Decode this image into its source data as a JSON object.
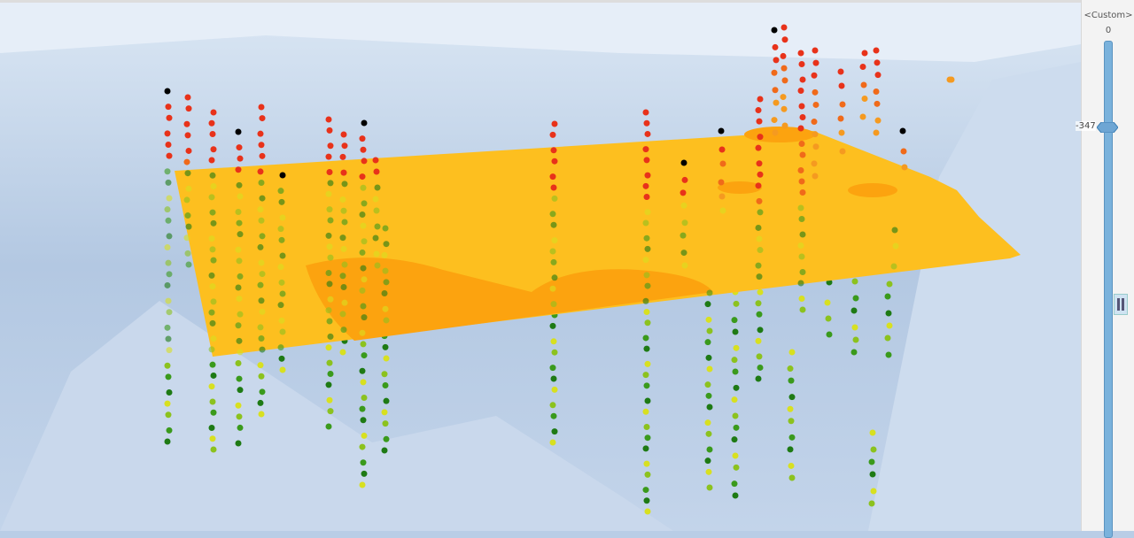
{
  "elevation_slider": {
    "mode_label": "<Custom>",
    "max_label": "0",
    "current_value_label": "-347"
  },
  "scene": {
    "background_color": "#b9cde6",
    "surface_color": "#fdbf1f",
    "surface_patch_color": "#fca30f",
    "point_colors_above": [
      "#e8321a",
      "#f06a1a",
      "#f59a20"
    ],
    "point_colors_below": [
      "#d8e020",
      "#8cc21e",
      "#3a9a1c",
      "#1e7a14"
    ]
  }
}
